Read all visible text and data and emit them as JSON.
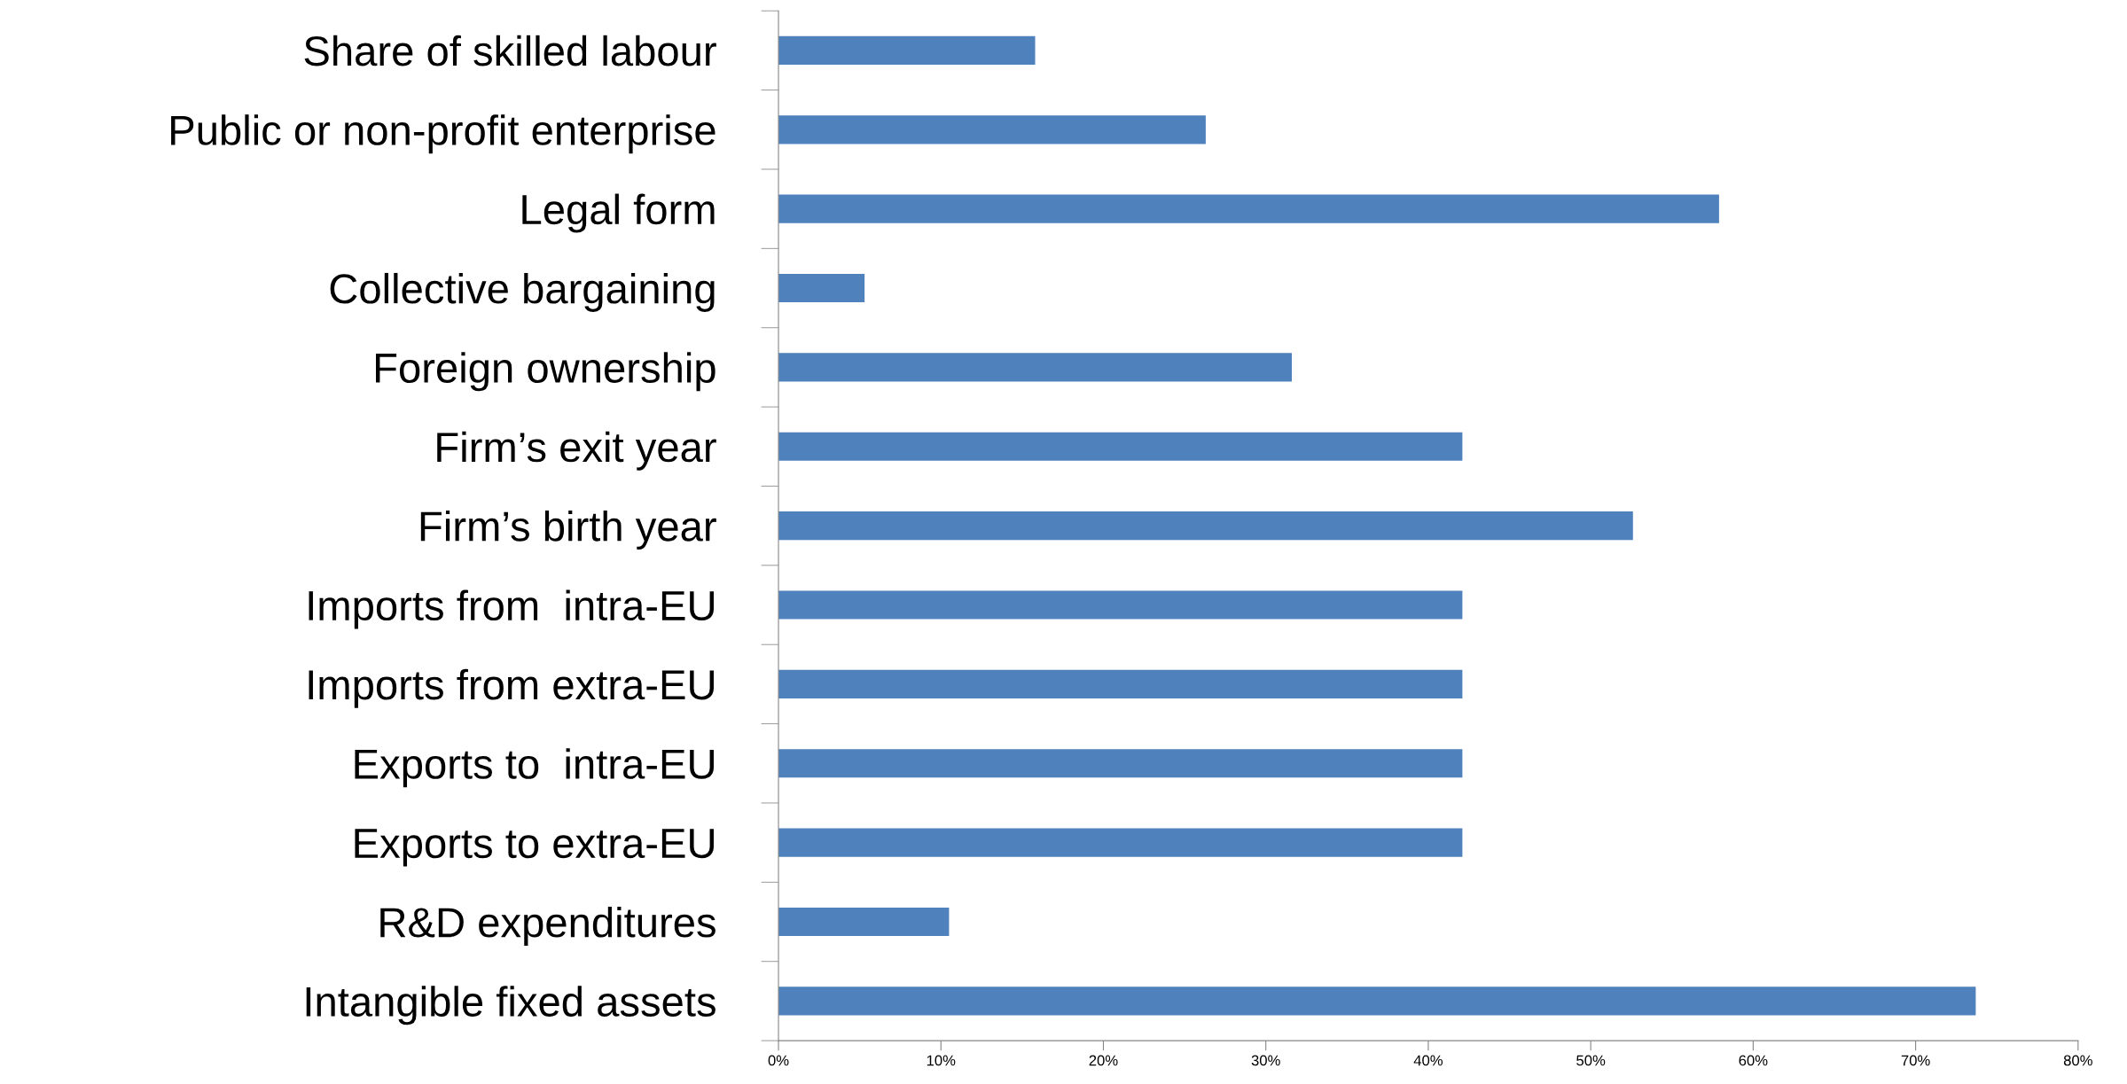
{
  "chart_data": {
    "type": "bar",
    "orientation": "horizontal",
    "categories": [
      "Share of skilled labour",
      "Public or non-profit enterprise",
      "Legal form",
      "Collective bargaining",
      "Foreign ownership",
      "Firm’s exit year",
      "Firm’s birth year",
      "Imports from  intra-EU",
      "Imports from extra-EU",
      "Exports to  intra-EU",
      "Exports to extra-EU",
      "R&D expenditures",
      "Intangible fixed assets"
    ],
    "values": [
      15.8,
      26.3,
      57.9,
      5.3,
      31.6,
      42.1,
      52.6,
      42.1,
      42.1,
      42.1,
      42.1,
      10.5,
      73.7
    ],
    "color": "#4f81bd",
    "xlim": [
      0,
      80
    ],
    "xticks": [
      {
        "value": 0,
        "label": "0%"
      },
      {
        "value": 10,
        "label": "10%"
      },
      {
        "value": 20,
        "label": "20%"
      },
      {
        "value": 30,
        "label": "30%"
      },
      {
        "value": 40,
        "label": "40%"
      },
      {
        "value": 50,
        "label": "50%"
      },
      {
        "value": 60,
        "label": "60%"
      },
      {
        "value": 70,
        "label": "70%"
      },
      {
        "value": 80,
        "label": "80%"
      }
    ],
    "grid": false,
    "legend": false
  }
}
